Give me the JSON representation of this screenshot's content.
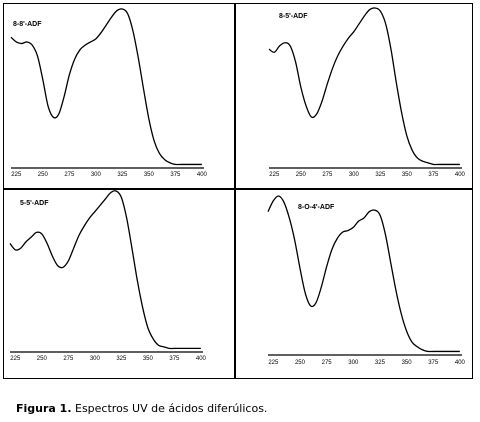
{
  "caption": {
    "label": "Figura 1.",
    "text": "Espectros UV de ácidos diferúlicos."
  },
  "chart_data": [
    {
      "type": "line",
      "panel_label": "8-8'-ADF",
      "xlim": [
        220,
        402
      ],
      "ylim": [
        0,
        1.0
      ],
      "x_ticks": [
        225,
        250,
        275,
        300,
        325,
        350,
        375,
        400
      ],
      "x": [
        220,
        225,
        230,
        235,
        240,
        245,
        250,
        255,
        260,
        265,
        270,
        275,
        280,
        285,
        290,
        295,
        300,
        305,
        310,
        315,
        320,
        325,
        330,
        335,
        340,
        345,
        350,
        355,
        360,
        365,
        370,
        375,
        380,
        385,
        390,
        395,
        400
      ],
      "values": [
        0.82,
        0.79,
        0.78,
        0.79,
        0.77,
        0.7,
        0.55,
        0.38,
        0.31,
        0.33,
        0.44,
        0.58,
        0.68,
        0.74,
        0.77,
        0.79,
        0.81,
        0.85,
        0.9,
        0.95,
        0.99,
        1.0,
        0.97,
        0.86,
        0.69,
        0.49,
        0.3,
        0.16,
        0.08,
        0.04,
        0.02,
        0.01,
        0.01,
        0.01,
        0.01,
        0.01,
        0.01
      ]
    },
    {
      "type": "line",
      "panel_label": "8-5'-ADF",
      "xlim": [
        220,
        402
      ],
      "ylim": [
        0,
        1.0
      ],
      "x_ticks": [
        225,
        250,
        275,
        300,
        325,
        350,
        375,
        400
      ],
      "x": [
        220,
        225,
        230,
        235,
        240,
        245,
        250,
        255,
        260,
        265,
        270,
        275,
        280,
        285,
        290,
        295,
        300,
        305,
        310,
        315,
        320,
        325,
        330,
        335,
        340,
        345,
        350,
        355,
        360,
        365,
        370,
        375,
        380,
        385,
        390,
        395,
        400
      ],
      "values": [
        0.74,
        0.72,
        0.76,
        0.78,
        0.76,
        0.66,
        0.5,
        0.38,
        0.31,
        0.33,
        0.41,
        0.52,
        0.62,
        0.7,
        0.76,
        0.81,
        0.85,
        0.9,
        0.95,
        0.99,
        1.0,
        0.98,
        0.9,
        0.74,
        0.53,
        0.34,
        0.19,
        0.1,
        0.05,
        0.03,
        0.02,
        0.01,
        0.01,
        0.01,
        0.01,
        0.01,
        0.01
      ]
    },
    {
      "type": "line",
      "panel_label": "5-5'-ADF",
      "xlim": [
        220,
        402
      ],
      "ylim": [
        0,
        1.0
      ],
      "x_ticks": [
        225,
        250,
        275,
        300,
        325,
        350,
        375,
        400
      ],
      "x": [
        220,
        225,
        230,
        235,
        240,
        245,
        250,
        255,
        260,
        265,
        270,
        275,
        280,
        285,
        290,
        295,
        300,
        305,
        310,
        315,
        320,
        325,
        330,
        335,
        340,
        345,
        350,
        355,
        360,
        365,
        370,
        375,
        380,
        385,
        390,
        395,
        400
      ],
      "values": [
        0.67,
        0.63,
        0.64,
        0.68,
        0.71,
        0.74,
        0.73,
        0.67,
        0.59,
        0.53,
        0.52,
        0.56,
        0.64,
        0.72,
        0.78,
        0.83,
        0.87,
        0.91,
        0.95,
        0.99,
        1.0,
        0.96,
        0.83,
        0.64,
        0.44,
        0.27,
        0.14,
        0.07,
        0.03,
        0.02,
        0.01,
        0.01,
        0.01,
        0.01,
        0.01,
        0.01,
        0.01
      ]
    },
    {
      "type": "line",
      "panel_label": "8-O-4'-ADF",
      "xlim": [
        220,
        402
      ],
      "ylim": [
        0,
        1.0
      ],
      "x_ticks": [
        225,
        250,
        275,
        300,
        325,
        350,
        375,
        400
      ],
      "x": [
        220,
        225,
        230,
        235,
        240,
        245,
        250,
        255,
        260,
        265,
        270,
        275,
        280,
        285,
        290,
        295,
        300,
        305,
        310,
        315,
        320,
        325,
        330,
        335,
        340,
        345,
        350,
        355,
        360,
        365,
        370,
        375,
        380,
        385,
        390,
        395,
        400
      ],
      "values": [
        0.9,
        0.97,
        1.0,
        0.96,
        0.86,
        0.72,
        0.54,
        0.38,
        0.3,
        0.32,
        0.42,
        0.55,
        0.66,
        0.73,
        0.77,
        0.78,
        0.8,
        0.84,
        0.86,
        0.9,
        0.91,
        0.88,
        0.76,
        0.58,
        0.4,
        0.25,
        0.14,
        0.07,
        0.04,
        0.02,
        0.01,
        0.01,
        0.01,
        0.01,
        0.01,
        0.01,
        0.01
      ]
    }
  ]
}
